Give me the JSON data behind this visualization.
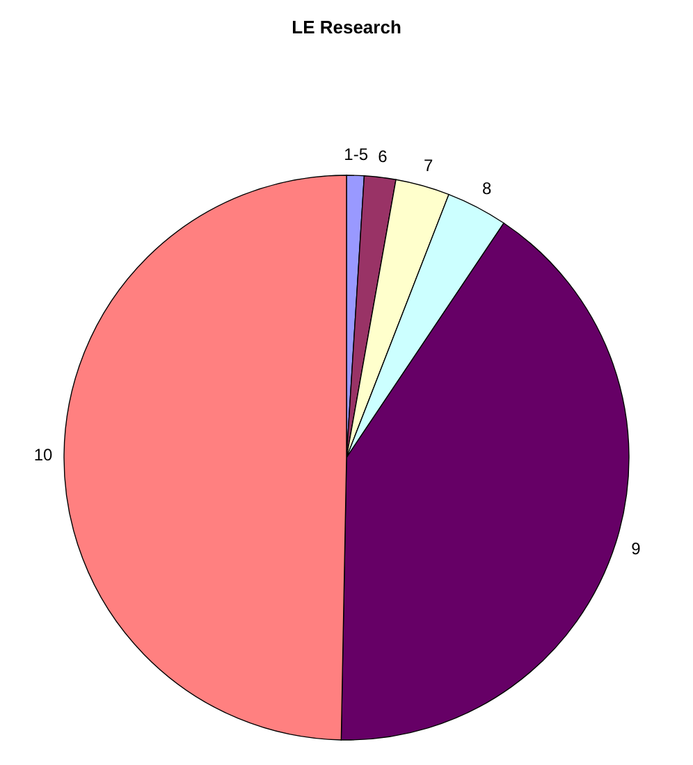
{
  "chart_data": {
    "type": "pie",
    "title": "LE Research",
    "categories": [
      "1-5",
      "6",
      "7",
      "8",
      "9",
      "10"
    ],
    "values": [
      1.0,
      1.8,
      3.1,
      3.5,
      40.9,
      49.7
    ],
    "colors": [
      "#9999ff",
      "#993366",
      "#ffffcc",
      "#ccffff",
      "#660066",
      "#ff8080"
    ]
  }
}
